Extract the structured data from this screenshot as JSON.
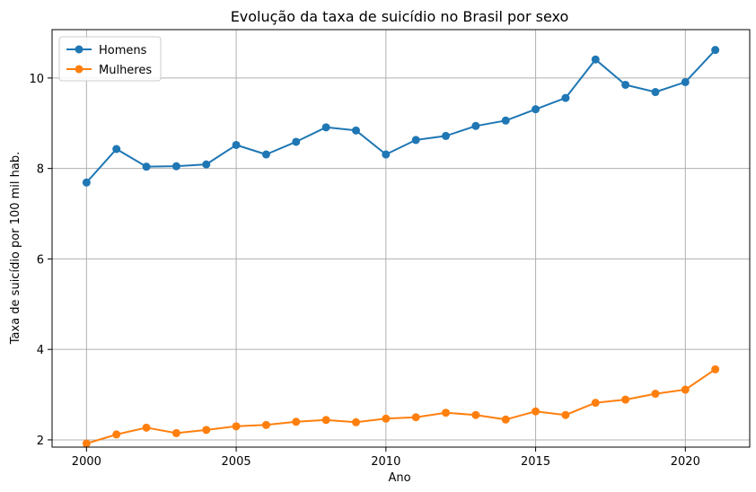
{
  "chart_data": {
    "type": "line",
    "title": "Evolução da taxa de suicídio no Brasil por sexo",
    "xlabel": "Ano",
    "ylabel": "Taxa de suicídio por 100 mil hab.",
    "x": [
      2000,
      2001,
      2002,
      2003,
      2004,
      2005,
      2006,
      2007,
      2008,
      2009,
      2010,
      2011,
      2012,
      2013,
      2014,
      2015,
      2016,
      2017,
      2018,
      2019,
      2020,
      2021
    ],
    "xticks": [
      2000,
      2005,
      2010,
      2015,
      2020
    ],
    "yticks": [
      2,
      4,
      6,
      8,
      10
    ],
    "xlim": [
      1998.85,
      2022.15
    ],
    "ylim": [
      1.84,
      11.07
    ],
    "grid": true,
    "legend_position": "top-left",
    "series": [
      {
        "name": "Homens",
        "color": "#1f77b4",
        "values": [
          7.69,
          8.43,
          8.04,
          8.05,
          8.09,
          8.52,
          8.31,
          8.59,
          8.91,
          8.84,
          8.31,
          8.63,
          8.72,
          8.94,
          9.06,
          9.31,
          9.56,
          10.41,
          9.85,
          9.69,
          9.91,
          10.62
        ]
      },
      {
        "name": "Mulheres",
        "color": "#ff7f0e",
        "values": [
          1.92,
          2.12,
          2.27,
          2.15,
          2.22,
          2.3,
          2.33,
          2.4,
          2.44,
          2.39,
          2.47,
          2.5,
          2.6,
          2.55,
          2.45,
          2.63,
          2.55,
          2.82,
          2.89,
          3.02,
          3.11,
          3.56
        ]
      }
    ]
  }
}
